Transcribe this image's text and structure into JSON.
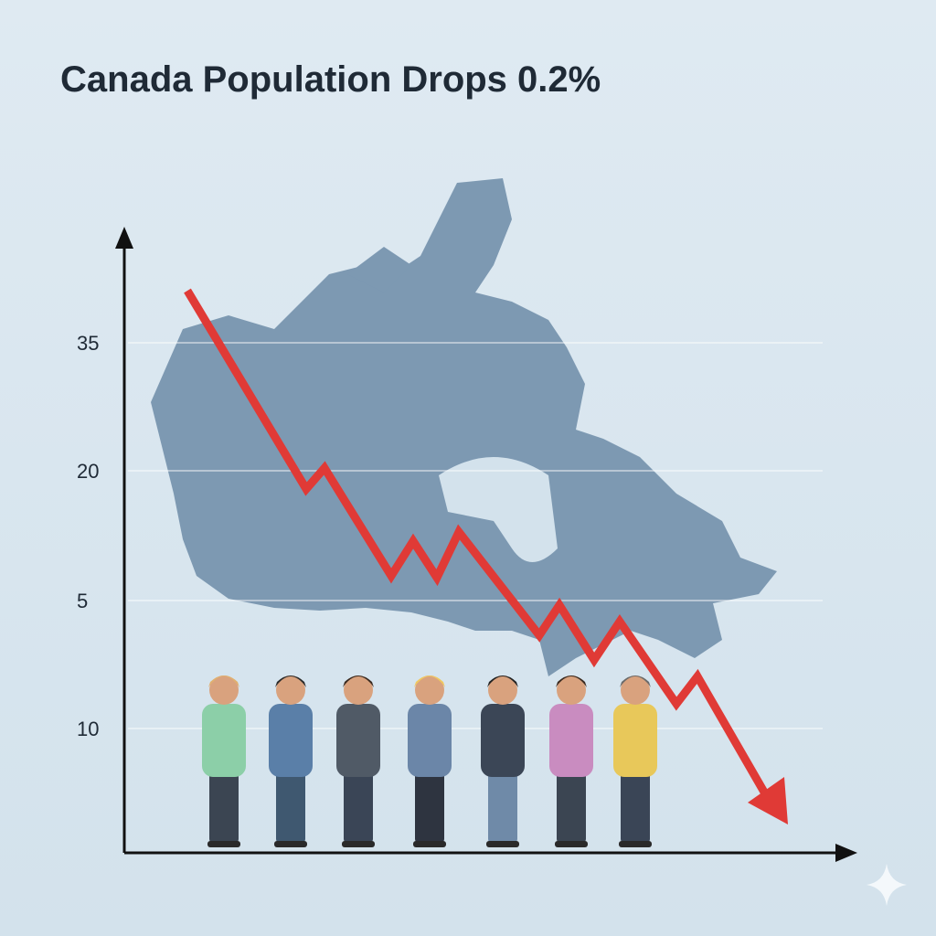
{
  "title": "Canada Population Drops 0.2%",
  "axis_labels": [
    "35",
    "20",
    "5",
    "10"
  ]
}
